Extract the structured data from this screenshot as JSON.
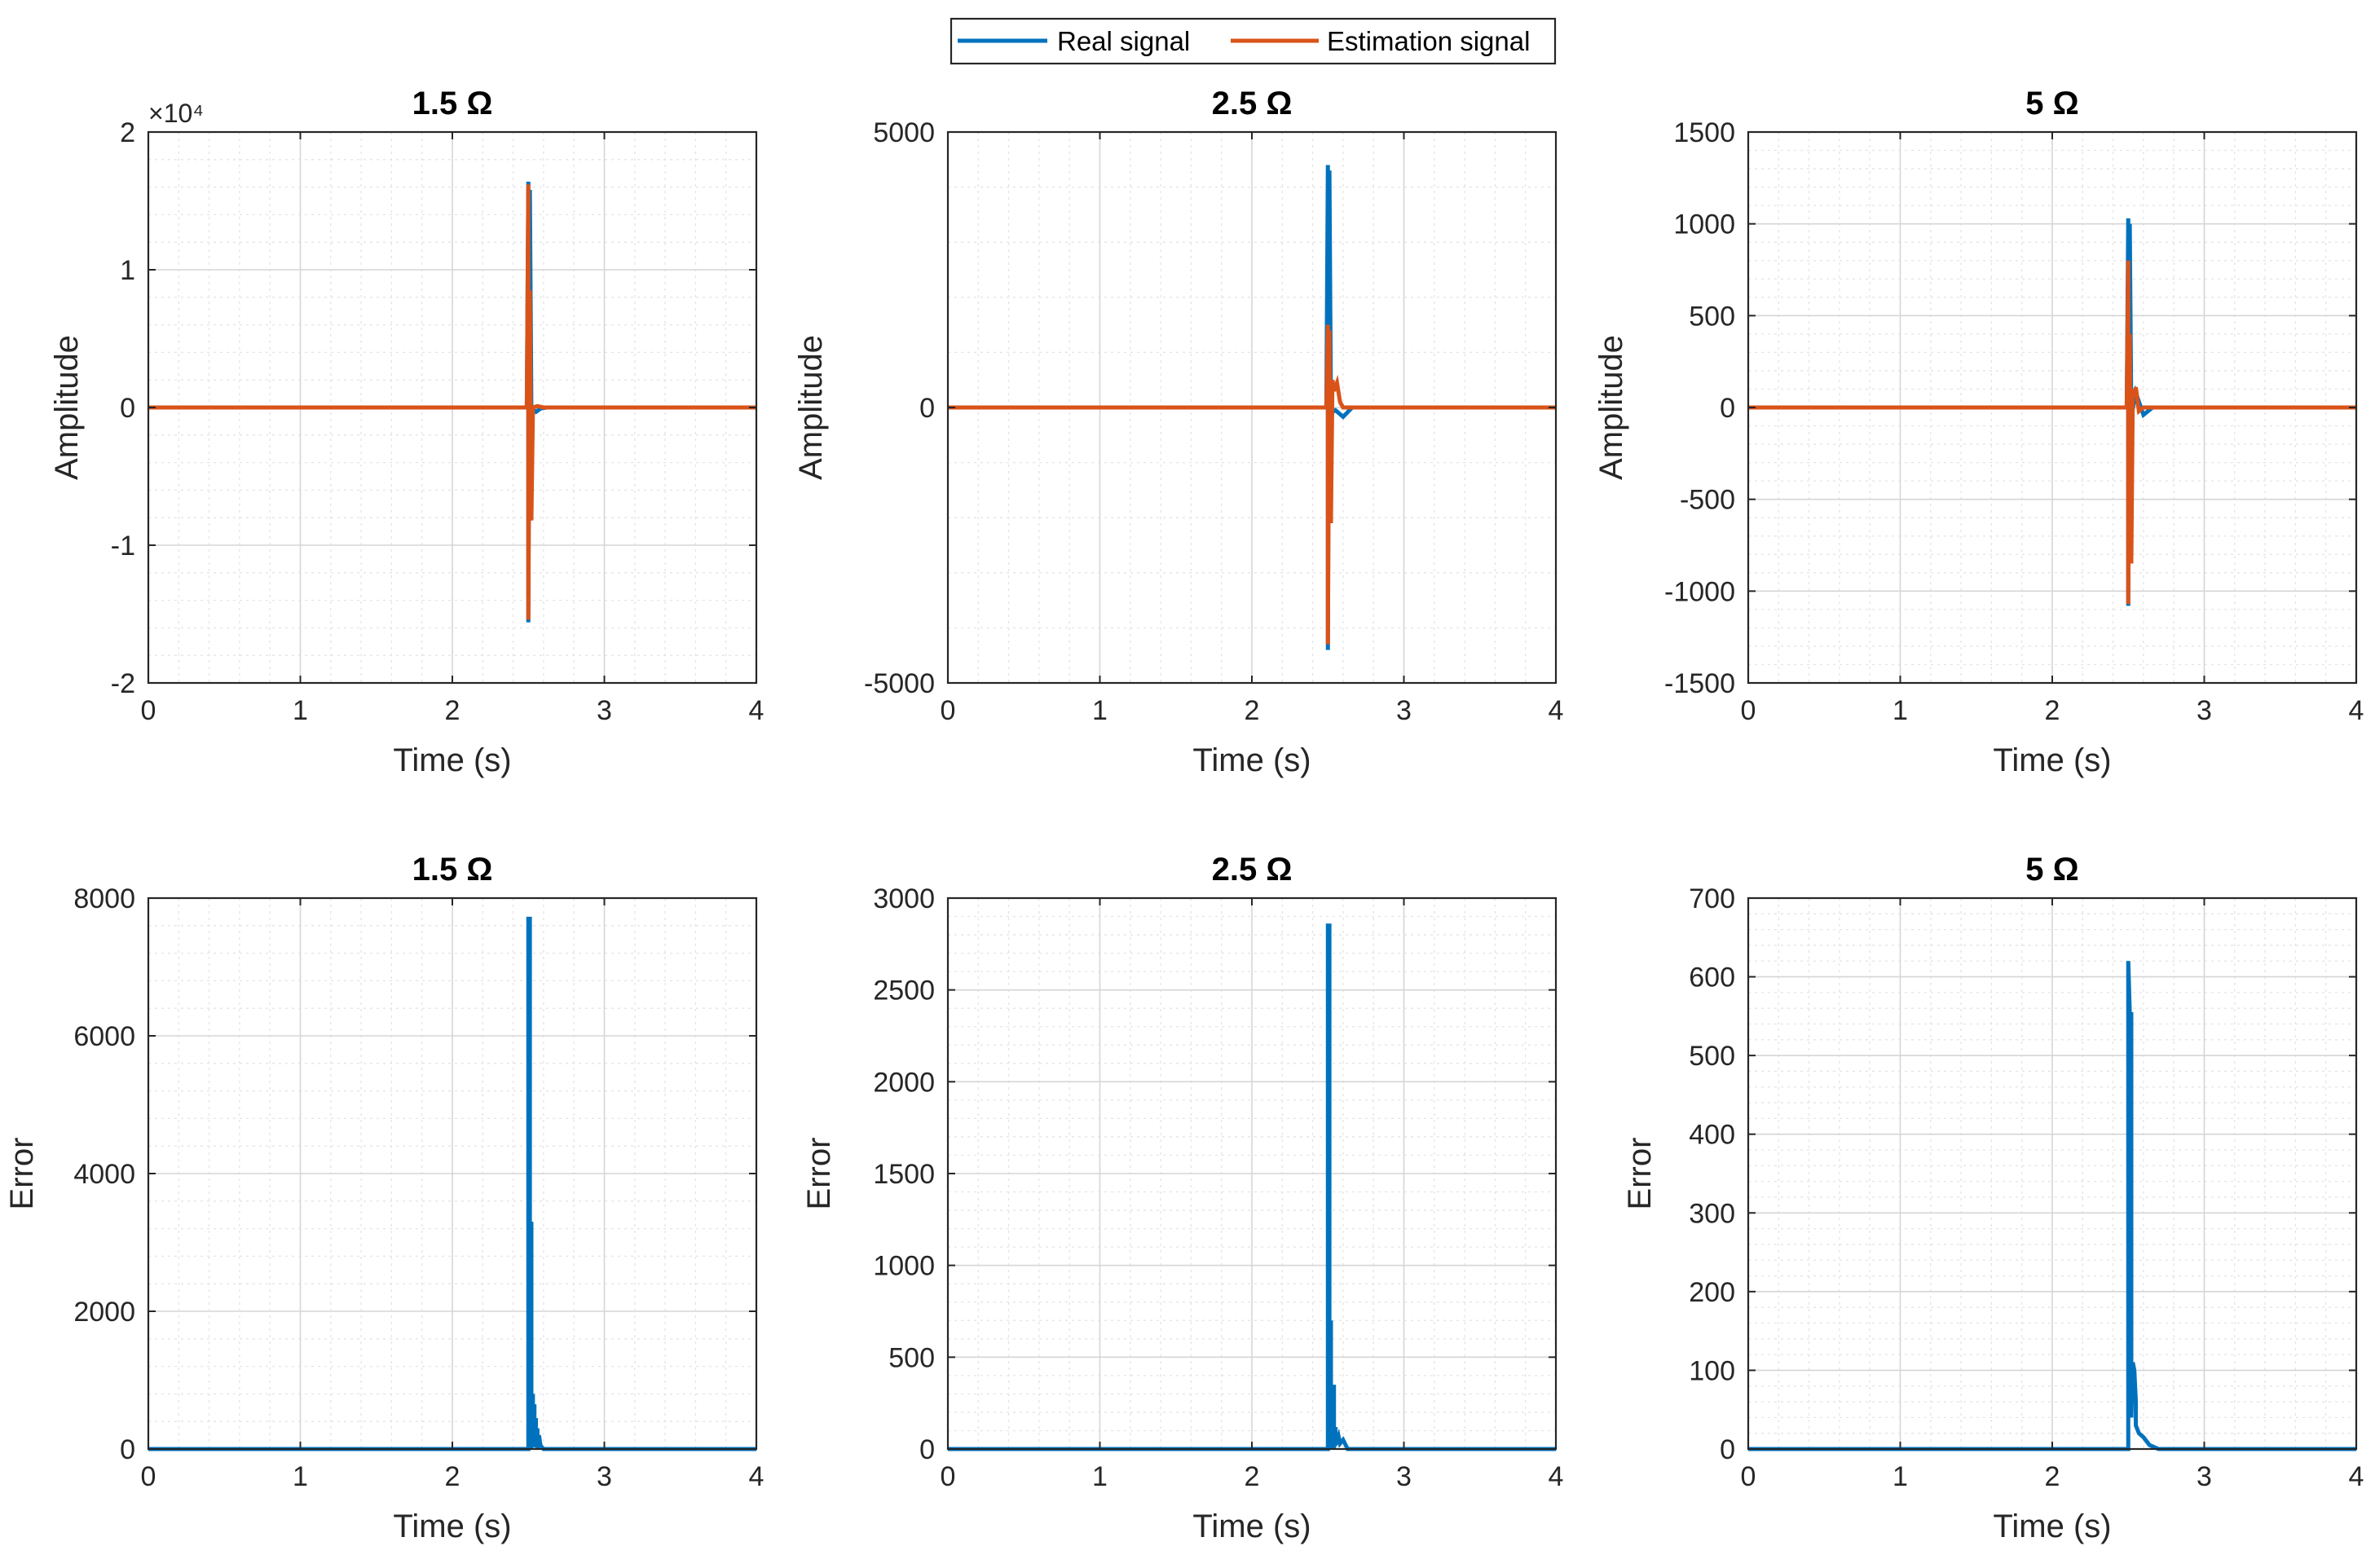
{
  "legend": {
    "position": "top-center",
    "entries": [
      {
        "label": "Real signal",
        "color": "#0072BD"
      },
      {
        "label": "Estimation signal",
        "color": "#D95319"
      }
    ]
  },
  "chart_data": [
    {
      "type": "line",
      "title": "1.5 Ω",
      "xlabel": "Time (s)",
      "ylabel": "Amplitude",
      "xlim": [
        0,
        4
      ],
      "ylim": [
        -20000,
        20000
      ],
      "x_ticks": [
        0,
        1,
        2,
        3,
        4
      ],
      "x_tick_labels": [
        "0",
        "1",
        "2",
        "3",
        "4"
      ],
      "y_ticks": [
        -20000,
        -10000,
        0,
        10000,
        20000
      ],
      "y_tick_labels": [
        "-2",
        "-1",
        "0",
        "1",
        "2"
      ],
      "y_exponent_label": "×10⁴",
      "grid": true,
      "series": [
        {
          "name": "Real signal",
          "color": "#0072BD",
          "x": [
            0,
            2.49,
            2.5,
            2.5,
            2.51,
            2.52,
            2.53,
            2.55,
            2.58,
            2.62,
            4
          ],
          "y": [
            0,
            0,
            16400,
            -15600,
            15800,
            -400,
            -150,
            -320,
            -80,
            0,
            0
          ]
        },
        {
          "name": "Estimation signal",
          "color": "#D95319",
          "x": [
            0,
            2.49,
            2.5,
            2.5,
            2.51,
            2.52,
            2.53,
            2.56,
            2.6,
            4
          ],
          "y": [
            0,
            0,
            16200,
            -15400,
            8500,
            -8200,
            0,
            100,
            0,
            0
          ]
        }
      ]
    },
    {
      "type": "line",
      "title": "2.5 Ω",
      "xlabel": "Time (s)",
      "ylabel": "Amplitude",
      "xlim": [
        0,
        4
      ],
      "ylim": [
        -5000,
        5000
      ],
      "x_ticks": [
        0,
        1,
        2,
        3,
        4
      ],
      "x_tick_labels": [
        "0",
        "1",
        "2",
        "3",
        "4"
      ],
      "y_ticks": [
        -5000,
        0,
        5000
      ],
      "y_tick_labels": [
        "-5000",
        "0",
        "5000"
      ],
      "grid": true,
      "series": [
        {
          "name": "Real signal",
          "color": "#0072BD",
          "x": [
            0,
            2.49,
            2.5,
            2.5,
            2.51,
            2.52,
            2.55,
            2.6,
            2.66,
            4
          ],
          "y": [
            0,
            0,
            4400,
            -4400,
            4300,
            -100,
            -50,
            -170,
            0,
            0
          ]
        },
        {
          "name": "Estimation signal",
          "color": "#D95319",
          "x": [
            0,
            2.49,
            2.5,
            2.5,
            2.51,
            2.52,
            2.53,
            2.54,
            2.56,
            2.58,
            2.6,
            4
          ],
          "y": [
            0,
            0,
            1500,
            -4300,
            1400,
            -2100,
            500,
            300,
            450,
            100,
            0,
            0
          ]
        }
      ]
    },
    {
      "type": "line",
      "title": "5 Ω",
      "xlabel": "Time (s)",
      "ylabel": "Amplitude",
      "xlim": [
        0,
        4
      ],
      "ylim": [
        -1500,
        1500
      ],
      "x_ticks": [
        0,
        1,
        2,
        3,
        4
      ],
      "x_tick_labels": [
        "0",
        "1",
        "2",
        "3",
        "4"
      ],
      "y_ticks": [
        -1500,
        -1000,
        -500,
        0,
        500,
        1000,
        1500
      ],
      "y_tick_labels": [
        "-1500",
        "-1000",
        "-500",
        "0",
        "500",
        "1000",
        "1500"
      ],
      "grid": true,
      "series": [
        {
          "name": "Real signal",
          "color": "#0072BD",
          "x": [
            0,
            2.49,
            2.5,
            2.5,
            2.51,
            2.52,
            2.55,
            2.6,
            2.66,
            4
          ],
          "y": [
            0,
            0,
            1030,
            -1080,
            1000,
            -50,
            80,
            -40,
            0,
            0
          ]
        },
        {
          "name": "Estimation signal",
          "color": "#D95319",
          "x": [
            0,
            2.49,
            2.5,
            2.5,
            2.51,
            2.52,
            2.53,
            2.54,
            2.55,
            2.57,
            2.6,
            4
          ],
          "y": [
            0,
            0,
            800,
            -1070,
            400,
            -850,
            100,
            60,
            110,
            -20,
            0,
            0
          ]
        }
      ]
    },
    {
      "type": "line",
      "title": "1.5 Ω",
      "xlabel": "Time (s)",
      "ylabel": "Error",
      "xlim": [
        0,
        4
      ],
      "ylim": [
        0,
        8000
      ],
      "x_ticks": [
        0,
        1,
        2,
        3,
        4
      ],
      "x_tick_labels": [
        "0",
        "1",
        "2",
        "3",
        "4"
      ],
      "y_ticks": [
        0,
        2000,
        4000,
        6000,
        8000
      ],
      "y_tick_labels": [
        "0",
        "2000",
        "4000",
        "6000",
        "8000"
      ],
      "grid": true,
      "series": [
        {
          "name": "Error",
          "color": "#0072BD",
          "x": [
            0,
            2.5,
            2.5,
            2.51,
            2.51,
            2.52,
            2.52,
            2.53,
            2.53,
            2.54,
            2.54,
            2.55,
            2.55,
            2.56,
            2.56,
            2.57,
            2.58,
            2.6,
            4
          ],
          "y": [
            0,
            0,
            7700,
            7700,
            100,
            3300,
            0,
            800,
            50,
            650,
            30,
            450,
            20,
            300,
            10,
            200,
            50,
            0,
            0
          ]
        }
      ]
    },
    {
      "type": "line",
      "title": "2.5 Ω",
      "xlabel": "Time (s)",
      "ylabel": "Error",
      "xlim": [
        0,
        4
      ],
      "ylim": [
        0,
        3000
      ],
      "x_ticks": [
        0,
        1,
        2,
        3,
        4
      ],
      "x_tick_labels": [
        "0",
        "1",
        "2",
        "3",
        "4"
      ],
      "y_ticks": [
        0,
        500,
        1000,
        1500,
        2000,
        2500,
        3000
      ],
      "y_tick_labels": [
        "0",
        "500",
        "1000",
        "1500",
        "2000",
        "2500",
        "3000"
      ],
      "grid": true,
      "series": [
        {
          "name": "Error",
          "color": "#0072BD",
          "x": [
            0,
            2.5,
            2.5,
            2.51,
            2.51,
            2.52,
            2.52,
            2.54,
            2.54,
            2.55,
            2.55,
            2.57,
            2.58,
            2.6,
            2.63,
            4
          ],
          "y": [
            0,
            0,
            2850,
            2850,
            50,
            700,
            0,
            350,
            0,
            120,
            20,
            70,
            30,
            50,
            0,
            0
          ]
        }
      ]
    },
    {
      "type": "line",
      "title": "5 Ω",
      "xlabel": "Time (s)",
      "ylabel": "Error",
      "xlim": [
        0,
        4
      ],
      "ylim": [
        0,
        700
      ],
      "x_ticks": [
        0,
        1,
        2,
        3,
        4
      ],
      "x_tick_labels": [
        "0",
        "1",
        "2",
        "3",
        "4"
      ],
      "y_ticks": [
        0,
        100,
        200,
        300,
        400,
        500,
        600,
        700
      ],
      "y_tick_labels": [
        "0",
        "100",
        "200",
        "300",
        "400",
        "500",
        "600",
        "700"
      ],
      "grid": true,
      "series": [
        {
          "name": "Error",
          "color": "#0072BD",
          "x": [
            0,
            2.5,
            2.5,
            2.51,
            2.51,
            2.52,
            2.52,
            2.53,
            2.54,
            2.55,
            2.55,
            2.57,
            2.6,
            2.62,
            2.64,
            2.7,
            4
          ],
          "y": [
            0,
            0,
            620,
            555,
            300,
            555,
            40,
            110,
            100,
            60,
            30,
            20,
            15,
            10,
            5,
            0,
            0
          ]
        }
      ]
    }
  ]
}
